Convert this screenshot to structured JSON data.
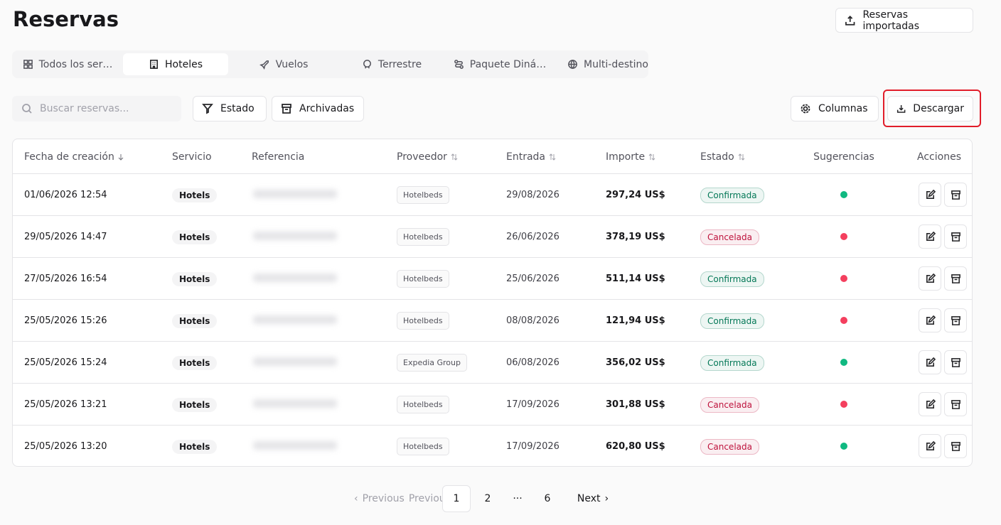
{
  "header": {
    "title": "Reservas",
    "import_button": "Reservas importadas"
  },
  "tabs": {
    "items": [
      "Todos los ser…",
      "Hoteles",
      "Vuelos",
      "Terrestre",
      "Paquete Diná…",
      "Multi-destino"
    ],
    "active": 1
  },
  "toolbar": {
    "search_placeholder": "Buscar reservas...",
    "filters": [
      "Estado",
      "Archivadas"
    ],
    "columns_button": "Columnas",
    "download_button": "Descargar"
  },
  "table": {
    "headers": [
      "Fecha de creación",
      "Servicio",
      "Referencia",
      "Proveedor",
      "Entrada",
      "Importe",
      "Estado",
      "Sugerencias",
      "Acciones"
    ],
    "rows": [
      {
        "created": "01/06/2026 12:54",
        "service": "Hotels",
        "provider": "Hotelbeds",
        "check_in": "29/08/2026",
        "amount": "297,24 US$",
        "status": "Confirmada",
        "status_color": "#047857",
        "suggestion_color": "#10b981"
      },
      {
        "created": "29/05/2026 14:47",
        "service": "Hotels",
        "provider": "Hotelbeds",
        "check_in": "26/06/2026",
        "amount": "378,19 US$",
        "status": "Cancelada",
        "status_color": "#be123c",
        "suggestion_color": "#f43f5e"
      },
      {
        "created": "27/05/2026 16:54",
        "service": "Hotels",
        "provider": "Hotelbeds",
        "check_in": "25/06/2026",
        "amount": "511,14 US$",
        "status": "Confirmada",
        "status_color": "#047857",
        "suggestion_color": "#f43f5e"
      },
      {
        "created": "25/05/2026 15:26",
        "service": "Hotels",
        "provider": "Hotelbeds",
        "check_in": "08/08/2026",
        "amount": "121,94 US$",
        "status": "Confirmada",
        "status_color": "#047857",
        "suggestion_color": "#f43f5e"
      },
      {
        "created": "25/05/2026 15:24",
        "service": "Hotels",
        "provider": "Expedia Group",
        "check_in": "06/08/2026",
        "amount": "356,02 US$",
        "status": "Confirmada",
        "status_color": "#047857",
        "suggestion_color": "#10b981"
      },
      {
        "created": "25/05/2026 13:21",
        "service": "Hotels",
        "provider": "Hotelbeds",
        "check_in": "17/09/2026",
        "amount": "301,88 US$",
        "status": "Cancelada",
        "status_color": "#be123c",
        "suggestion_color": "#f43f5e"
      },
      {
        "created": "25/05/2026 13:20",
        "service": "Hotels",
        "provider": "Hotelbeds",
        "check_in": "17/09/2026",
        "amount": "620,80 US$",
        "status": "Cancelada",
        "status_color": "#be123c",
        "suggestion_color": "#10b981"
      }
    ]
  },
  "pagination": {
    "previous": "Previous",
    "pages": [
      "1",
      "2",
      "···",
      "6"
    ],
    "current": 0,
    "next": "Next"
  }
}
